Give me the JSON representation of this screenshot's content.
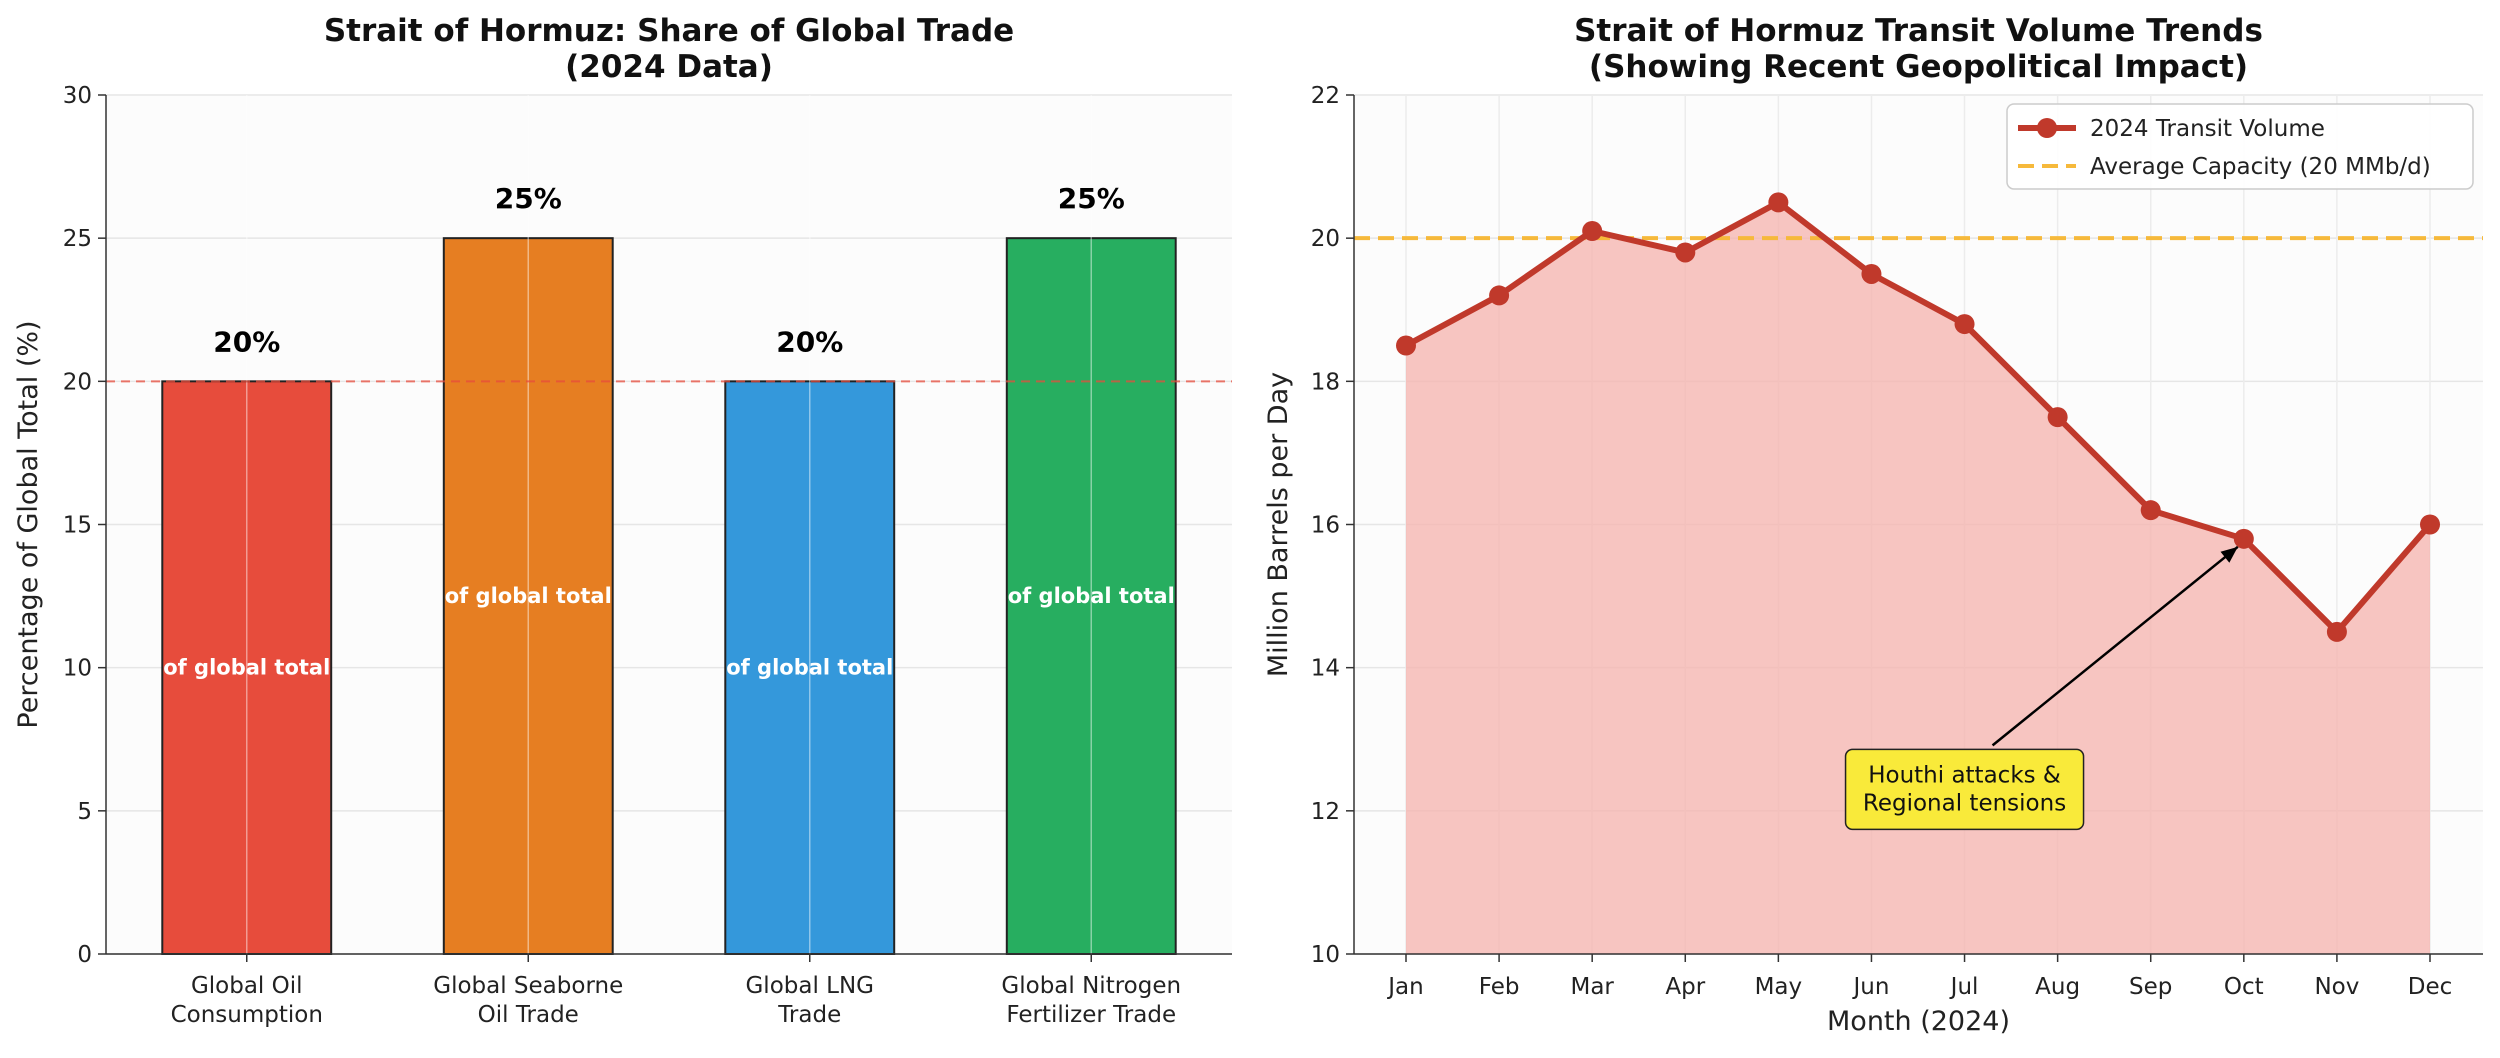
{
  "chart_data": [
    {
      "type": "bar",
      "title": "Strait of Hormuz: Share of Global Trade\n(2024 Data)",
      "xlabel": "",
      "ylabel": "Percentage of Global Total (%)",
      "ylim": [
        0,
        30
      ],
      "yticks": [
        0,
        5,
        10,
        15,
        20,
        25,
        30
      ],
      "grid": true,
      "categories": [
        "Global Oil\nConsumption",
        "Global Seaborne\nOil Trade",
        "Global LNG\nTrade",
        "Global Nitrogen\nFertilizer Trade"
      ],
      "values": [
        20,
        25,
        20,
        25
      ],
      "colors": [
        "#e74c3c",
        "#e67e22",
        "#3498db",
        "#27ae60"
      ],
      "value_labels": [
        "20%",
        "25%",
        "20%",
        "25%"
      ],
      "inner_label": "of global total",
      "reference_line": {
        "y": 20,
        "color": "#e74c3c",
        "style": "dashed"
      }
    },
    {
      "type": "line",
      "title": "Strait of Hormuz Transit Volume Trends\n(Showing Recent Geopolitical Impact)",
      "xlabel": "Month (2024)",
      "ylabel": "Million Barrels per Day",
      "ylim": [
        10,
        22
      ],
      "yticks": [
        10,
        12,
        14,
        16,
        18,
        20,
        22
      ],
      "grid": true,
      "categories": [
        "Jan",
        "Feb",
        "Mar",
        "Apr",
        "May",
        "Jun",
        "Jul",
        "Aug",
        "Sep",
        "Oct",
        "Nov",
        "Dec"
      ],
      "series": [
        {
          "name": "2024 Transit Volume",
          "values": [
            18.5,
            19.2,
            20.1,
            19.8,
            20.5,
            19.5,
            18.8,
            17.5,
            16.2,
            15.8,
            14.5,
            16.0
          ],
          "color": "#c0392b",
          "fill": "#f5b7b1"
        }
      ],
      "reference_line": {
        "y": 20,
        "label": "Average Capacity (20 MMb/d)",
        "color": "#f6b93b",
        "style": "dashed"
      },
      "legend": "top-right",
      "annotation": {
        "text": "Houthi attacks &\nRegional tensions",
        "target_x": "Oct",
        "target_y": 15.8,
        "text_x": "Jul",
        "text_y": 12.3,
        "box_color": "#f9ea3a"
      }
    }
  ]
}
